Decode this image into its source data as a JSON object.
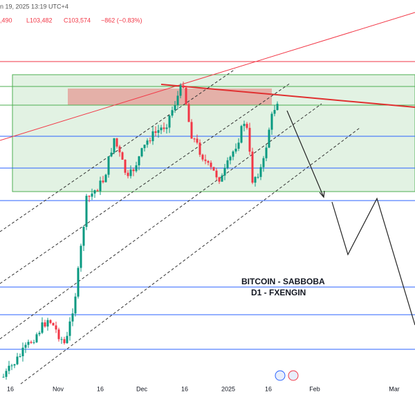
{
  "header": {
    "date_time": "n 19, 2025 13:19 UTC+4",
    "open_fragment": ",490",
    "low": "L103,482",
    "close": "C103,574",
    "change": "−862 (−0.83%)"
  },
  "time_axis": [
    "16",
    "Nov",
    "16",
    "Dec",
    "16",
    "2025",
    "16",
    "Feb",
    "Mar"
  ],
  "annotation": {
    "line1": "BITCOIN - SABBOBA",
    "line2": "D1 - FXENGIN"
  }
}
